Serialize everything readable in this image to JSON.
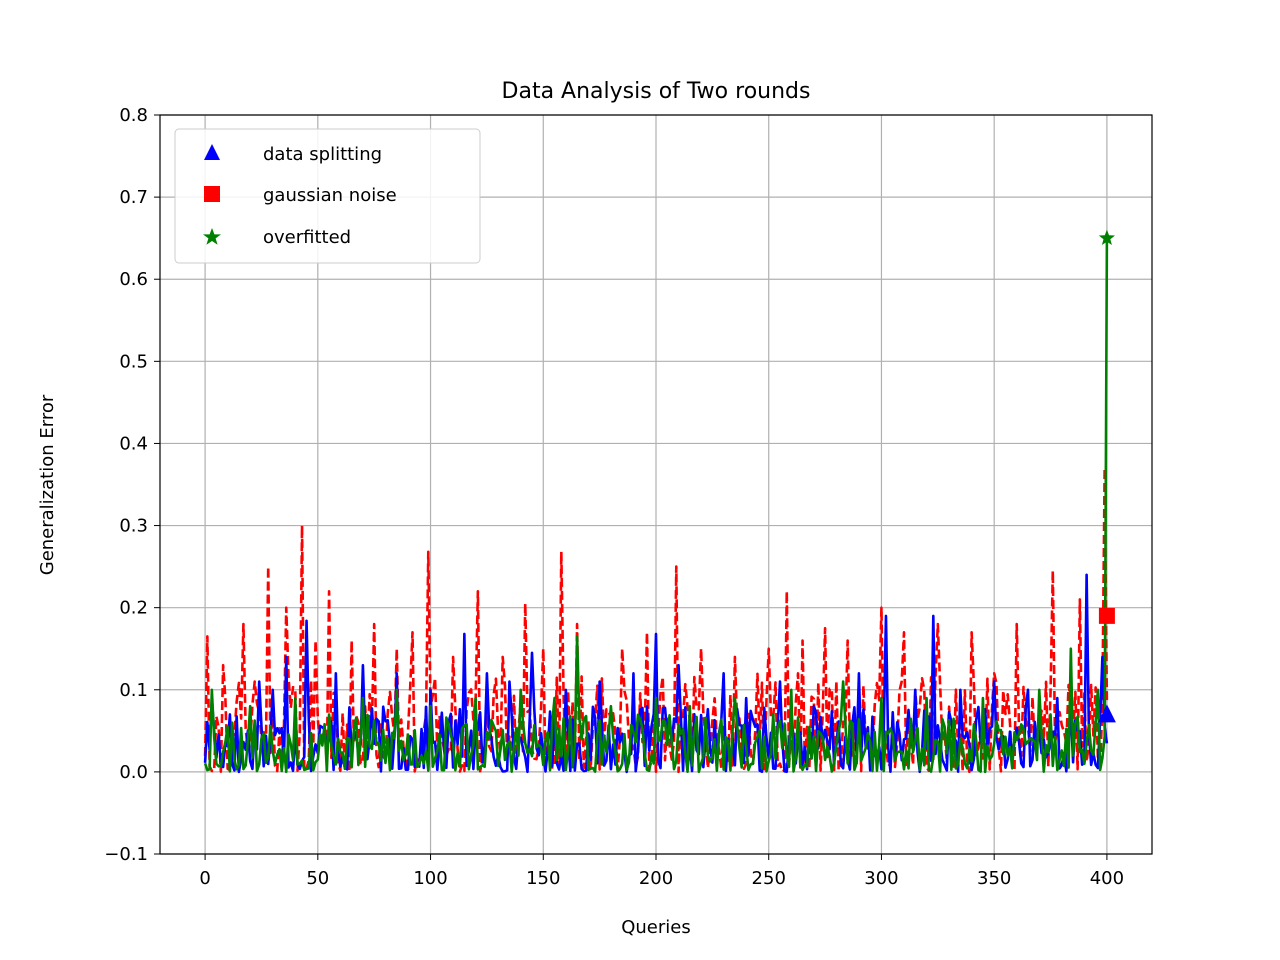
{
  "chart_data": {
    "type": "line",
    "title": "Data Analysis of Two rounds",
    "xlabel": "Queries",
    "ylabel": "Generalization Error",
    "xlim": [
      -20,
      420
    ],
    "ylim": [
      -0.1,
      0.8
    ],
    "xticks": [
      0,
      50,
      100,
      150,
      200,
      250,
      300,
      350,
      400
    ],
    "yticks": [
      -0.1,
      0.0,
      0.1,
      0.2,
      0.3,
      0.4,
      0.5,
      0.6,
      0.7,
      0.8
    ],
    "grid": true,
    "legend_position": "top-left",
    "series": [
      {
        "name": "data splitting",
        "color": "#0000ff",
        "line_style": "solid",
        "marker": "triangle",
        "final_marker": {
          "x": 400,
          "y": 0.07
        },
        "peaks": [
          [
            3,
            0.09
          ],
          [
            11,
            0.07
          ],
          [
            15,
            0.0
          ],
          [
            24,
            0.11
          ],
          [
            30,
            0.1
          ],
          [
            36,
            0.14
          ],
          [
            45,
            0.184
          ],
          [
            58,
            0.12
          ],
          [
            70,
            0.13
          ],
          [
            85,
            0.12
          ],
          [
            100,
            0.1
          ],
          [
            115,
            0.168
          ],
          [
            125,
            0.12
          ],
          [
            135,
            0.11
          ],
          [
            145,
            0.145
          ],
          [
            160,
            0.1
          ],
          [
            175,
            0.11
          ],
          [
            190,
            0.12
          ],
          [
            200,
            0.168
          ],
          [
            210,
            0.13
          ],
          [
            230,
            0.12
          ],
          [
            240,
            0.09
          ],
          [
            255,
            0.11
          ],
          [
            270,
            0.08
          ],
          [
            290,
            0.12
          ],
          [
            302,
            0.19
          ],
          [
            315,
            0.1
          ],
          [
            323,
            0.19
          ],
          [
            335,
            0.1
          ],
          [
            350,
            0.11
          ],
          [
            365,
            0.1
          ],
          [
            378,
            0.09
          ],
          [
            391,
            0.24
          ],
          [
            398,
            0.14
          ]
        ],
        "baseline_range": [
          0.0,
          0.08
        ]
      },
      {
        "name": "gaussian noise",
        "color": "#ff0000",
        "line_style": "dashed",
        "marker": "square",
        "final_marker": {
          "x": 400,
          "y": 0.19
        },
        "peaks": [
          [
            1,
            0.165
          ],
          [
            8,
            0.13
          ],
          [
            17,
            0.18
          ],
          [
            22,
            0.11
          ],
          [
            28,
            0.25
          ],
          [
            36,
            0.2
          ],
          [
            43,
            0.3
          ],
          [
            49,
            0.16
          ],
          [
            55,
            0.22
          ],
          [
            65,
            0.16
          ],
          [
            75,
            0.18
          ],
          [
            85,
            0.15
          ],
          [
            92,
            0.17
          ],
          [
            99,
            0.268
          ],
          [
            110,
            0.14
          ],
          [
            121,
            0.22
          ],
          [
            132,
            0.14
          ],
          [
            142,
            0.205
          ],
          [
            150,
            0.15
          ],
          [
            158,
            0.268
          ],
          [
            165,
            0.18
          ],
          [
            185,
            0.15
          ],
          [
            196,
            0.17
          ],
          [
            209,
            0.25
          ],
          [
            220,
            0.15
          ],
          [
            235,
            0.14
          ],
          [
            250,
            0.15
          ],
          [
            258,
            0.22
          ],
          [
            265,
            0.16
          ],
          [
            275,
            0.175
          ],
          [
            285,
            0.16
          ],
          [
            300,
            0.2
          ],
          [
            310,
            0.17
          ],
          [
            325,
            0.18
          ],
          [
            340,
            0.17
          ],
          [
            350,
            0.12
          ],
          [
            360,
            0.18
          ],
          [
            376,
            0.245
          ],
          [
            388,
            0.21
          ],
          [
            399,
            0.37
          ]
        ],
        "baseline_range": [
          0.0,
          0.12
        ]
      },
      {
        "name": "overfitted",
        "color": "#008000",
        "line_style": "solid",
        "marker": "star",
        "final_marker": {
          "x": 400,
          "y": 0.65
        },
        "peaks": [
          [
            3,
            0.1
          ],
          [
            12,
            0.06
          ],
          [
            20,
            0.08
          ],
          [
            40,
            0.09
          ],
          [
            55,
            0.07
          ],
          [
            70,
            0.09
          ],
          [
            85,
            0.1
          ],
          [
            100,
            0.08
          ],
          [
            120,
            0.09
          ],
          [
            140,
            0.1
          ],
          [
            155,
            0.09
          ],
          [
            165,
            0.165
          ],
          [
            180,
            0.08
          ],
          [
            200,
            0.09
          ],
          [
            215,
            0.08
          ],
          [
            235,
            0.09
          ],
          [
            260,
            0.1
          ],
          [
            283,
            0.11
          ],
          [
            300,
            0.09
          ],
          [
            320,
            0.09
          ],
          [
            345,
            0.09
          ],
          [
            370,
            0.1
          ],
          [
            384,
            0.15
          ],
          [
            396,
            0.1
          ],
          [
            400,
            0.65
          ]
        ],
        "baseline_range": [
          0.0,
          0.07
        ]
      }
    ]
  }
}
